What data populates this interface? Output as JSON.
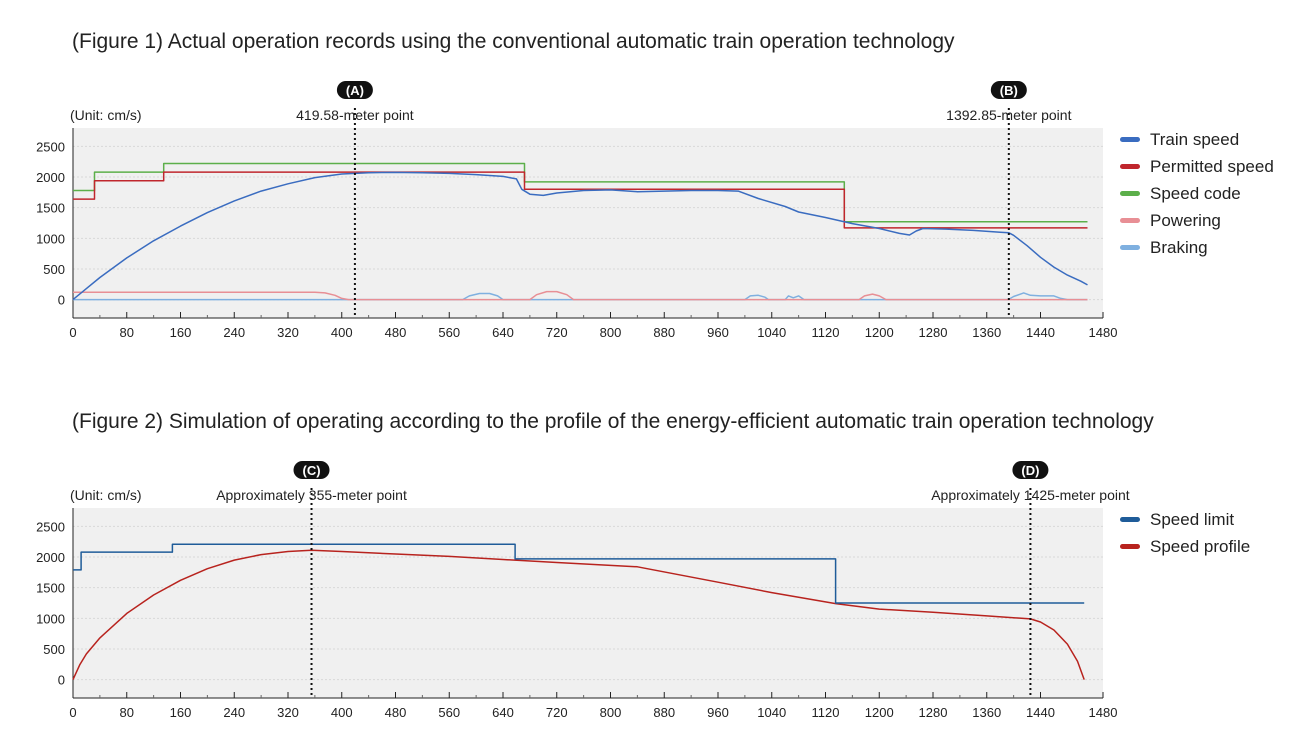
{
  "chart_data": [
    {
      "type": "line",
      "title": "(Figure 1) Actual operation records using the conventional automatic train operation technology",
      "unit_label": "(Unit: cm/s)",
      "xlim": [
        0,
        1480
      ],
      "ylim": [
        -300,
        2800
      ],
      "x_ticks": [
        "0",
        "80",
        "160",
        "240",
        "320",
        "400",
        "480",
        "560",
        "640",
        "720",
        "800",
        "880",
        "960",
        "1040",
        "1120",
        "1200",
        "1280",
        "1360",
        "1440",
        "1480"
      ],
      "y_ticks": [
        "2500",
        "2000",
        "1500",
        "1000",
        "500",
        "0"
      ],
      "grid": true,
      "legend_position": "right",
      "markers": [
        {
          "tag": "(A)",
          "label": "419.58-meter point",
          "x": 419.58
        },
        {
          "tag": "(B)",
          "label": "1392.85-meter point",
          "x": 1392.85
        }
      ],
      "series": [
        {
          "name": "Train speed",
          "color": "#3a6cc0",
          "points": [
            [
              0,
              0
            ],
            [
              20,
              180
            ],
            [
              40,
              360
            ],
            [
              80,
              680
            ],
            [
              120,
              960
            ],
            [
              160,
              1200
            ],
            [
              200,
              1420
            ],
            [
              240,
              1610
            ],
            [
              280,
              1770
            ],
            [
              320,
              1890
            ],
            [
              360,
              1990
            ],
            [
              400,
              2050
            ],
            [
              440,
              2070
            ],
            [
              480,
              2075
            ],
            [
              520,
              2070
            ],
            [
              560,
              2060
            ],
            [
              600,
              2040
            ],
            [
              640,
              2010
            ],
            [
              660,
              1970
            ],
            [
              668,
              1800
            ],
            [
              680,
              1720
            ],
            [
              700,
              1700
            ],
            [
              720,
              1740
            ],
            [
              760,
              1780
            ],
            [
              800,
              1790
            ],
            [
              840,
              1760
            ],
            [
              880,
              1770
            ],
            [
              920,
              1780
            ],
            [
              960,
              1780
            ],
            [
              990,
              1770
            ],
            [
              1020,
              1650
            ],
            [
              1060,
              1520
            ],
            [
              1080,
              1430
            ],
            [
              1120,
              1340
            ],
            [
              1160,
              1240
            ],
            [
              1200,
              1160
            ],
            [
              1230,
              1080
            ],
            [
              1245,
              1055
            ],
            [
              1255,
              1120
            ],
            [
              1265,
              1160
            ],
            [
              1300,
              1150
            ],
            [
              1340,
              1130
            ],
            [
              1380,
              1100
            ],
            [
              1393,
              1090
            ],
            [
              1400,
              1050
            ],
            [
              1420,
              880
            ],
            [
              1440,
              690
            ],
            [
              1460,
              530
            ],
            [
              1480,
              400
            ],
            [
              1500,
              300
            ],
            [
              1510,
              240
            ]
          ]
        },
        {
          "name": "Permitted speed",
          "color": "#c0262d",
          "points": [
            [
              0,
              1640
            ],
            [
              32,
              1640
            ],
            [
              32,
              1940
            ],
            [
              135,
              1940
            ],
            [
              135,
              2080
            ],
            [
              672,
              2080
            ],
            [
              672,
              1800
            ],
            [
              1148,
              1800
            ],
            [
              1148,
              1170
            ],
            [
              1510,
              1170
            ]
          ]
        },
        {
          "name": "Speed code",
          "color": "#5caf4a",
          "points": [
            [
              0,
              1780
            ],
            [
              32,
              1780
            ],
            [
              32,
              2080
            ],
            [
              135,
              2080
            ],
            [
              135,
              2220
            ],
            [
              672,
              2220
            ],
            [
              672,
              1920
            ],
            [
              1148,
              1920
            ],
            [
              1148,
              1270
            ],
            [
              1510,
              1270
            ]
          ]
        },
        {
          "name": "Powering",
          "color": "#e88f95",
          "points": [
            [
              0,
              120
            ],
            [
              120,
              120
            ],
            [
              360,
              120
            ],
            [
              375,
              110
            ],
            [
              390,
              70
            ],
            [
              400,
              20
            ],
            [
              410,
              0
            ],
            [
              680,
              0
            ],
            [
              690,
              80
            ],
            [
              705,
              130
            ],
            [
              720,
              130
            ],
            [
              735,
              80
            ],
            [
              745,
              0
            ],
            [
              1170,
              0
            ],
            [
              1178,
              60
            ],
            [
              1190,
              90
            ],
            [
              1200,
              60
            ],
            [
              1210,
              0
            ],
            [
              1510,
              0
            ]
          ]
        },
        {
          "name": "Braking",
          "color": "#7fb0e0",
          "points": [
            [
              0,
              0
            ],
            [
              580,
              0
            ],
            [
              590,
              60
            ],
            [
              605,
              100
            ],
            [
              620,
              100
            ],
            [
              632,
              60
            ],
            [
              640,
              0
            ],
            [
              1000,
              0
            ],
            [
              1008,
              60
            ],
            [
              1020,
              70
            ],
            [
              1030,
              40
            ],
            [
              1035,
              0
            ],
            [
              1060,
              0
            ],
            [
              1065,
              60
            ],
            [
              1072,
              30
            ],
            [
              1080,
              60
            ],
            [
              1088,
              0
            ],
            [
              1392,
              0
            ],
            [
              1400,
              50
            ],
            [
              1415,
              110
            ],
            [
              1425,
              70
            ],
            [
              1440,
              60
            ],
            [
              1460,
              60
            ],
            [
              1470,
              20
            ],
            [
              1480,
              0
            ],
            [
              1510,
              0
            ]
          ]
        }
      ]
    },
    {
      "type": "line",
      "title": "(Figure 2) Simulation of operating according to the profile of the energy-efficient automatic train operation technology",
      "unit_label": "(Unit: cm/s)",
      "xlim": [
        0,
        1480
      ],
      "ylim": [
        -300,
        2800
      ],
      "x_ticks": [
        "0",
        "80",
        "160",
        "240",
        "320",
        "400",
        "480",
        "560",
        "640",
        "720",
        "800",
        "880",
        "960",
        "1040",
        "1120",
        "1200",
        "1280",
        "1360",
        "1440",
        "1480"
      ],
      "y_ticks": [
        "2500",
        "2000",
        "1500",
        "1000",
        "500",
        "0"
      ],
      "grid": true,
      "legend_position": "right",
      "markers": [
        {
          "tag": "(C)",
          "label": "Approximately 355-meter point",
          "x": 355
        },
        {
          "tag": "(D)",
          "label": "Approximately 1425-meter point",
          "x": 1425
        }
      ],
      "series": [
        {
          "name": "Speed limit",
          "color": "#1f5c99",
          "points": [
            [
              0,
              1790
            ],
            [
              12,
              1790
            ],
            [
              12,
              2080
            ],
            [
              148,
              2080
            ],
            [
              148,
              2210
            ],
            [
              658,
              2210
            ],
            [
              658,
              1970
            ],
            [
              1135,
              1970
            ],
            [
              1135,
              1250
            ],
            [
              1505,
              1250
            ]
          ]
        },
        {
          "name": "Speed profile",
          "color": "#b8231e",
          "points": [
            [
              0,
              0
            ],
            [
              10,
              240
            ],
            [
              20,
              420
            ],
            [
              40,
              680
            ],
            [
              80,
              1080
            ],
            [
              120,
              1380
            ],
            [
              160,
              1620
            ],
            [
              200,
              1810
            ],
            [
              240,
              1950
            ],
            [
              280,
              2040
            ],
            [
              320,
              2090
            ],
            [
              355,
              2110
            ],
            [
              400,
              2090
            ],
            [
              480,
              2050
            ],
            [
              560,
              2010
            ],
            [
              640,
              1960
            ],
            [
              720,
              1910
            ],
            [
              840,
              1840
            ],
            [
              960,
              1590
            ],
            [
              1040,
              1420
            ],
            [
              1135,
              1240
            ],
            [
              1200,
              1150
            ],
            [
              1280,
              1100
            ],
            [
              1360,
              1040
            ],
            [
              1425,
              990
            ],
            [
              1440,
              940
            ],
            [
              1460,
              810
            ],
            [
              1480,
              580
            ],
            [
              1495,
              300
            ],
            [
              1505,
              0
            ]
          ]
        }
      ]
    }
  ]
}
